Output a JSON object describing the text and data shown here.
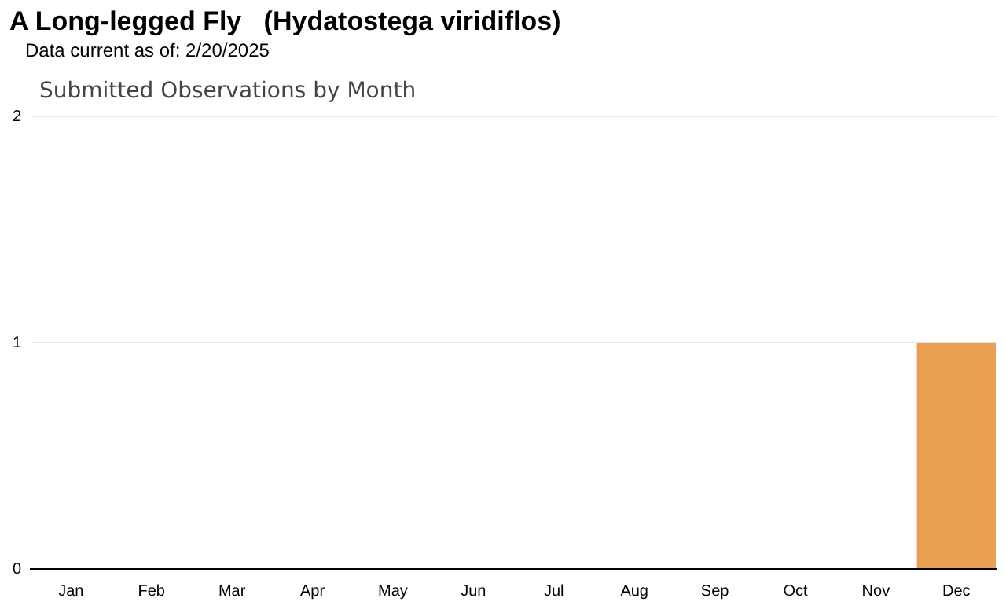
{
  "chart_data": {
    "type": "bar",
    "title": "A Long-legged Fly   (Hydatostega viridiflos)",
    "subtitle": "Data current as of: 2/20/2025",
    "annotations": [
      "Submitted Observations by Month"
    ],
    "categories": [
      "Jan",
      "Feb",
      "Mar",
      "Apr",
      "May",
      "Jun",
      "Jul",
      "Aug",
      "Sep",
      "Oct",
      "Nov",
      "Dec"
    ],
    "values": [
      0,
      0,
      0,
      0,
      0,
      0,
      0,
      0,
      0,
      0,
      0,
      1
    ],
    "color": "#e9a052",
    "ylim": [
      0,
      2
    ],
    "yticks": [
      0,
      1,
      2
    ],
    "grid": "y"
  }
}
